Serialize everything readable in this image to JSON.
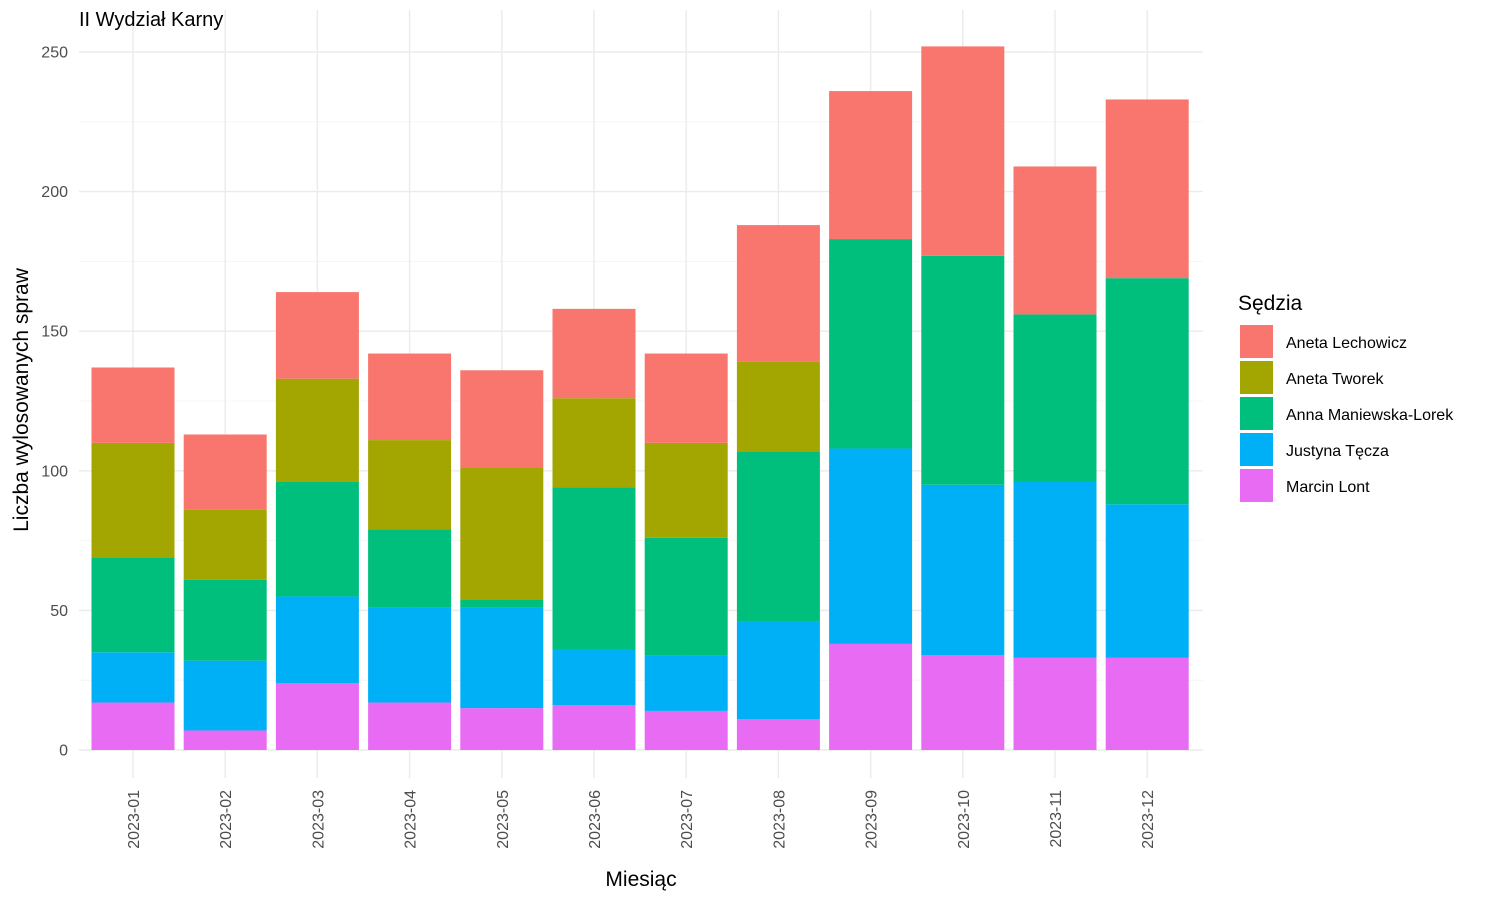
{
  "chart_data": {
    "type": "bar",
    "stacked": true,
    "title": "II Wydział Karny",
    "xlabel": "Miesiąc",
    "ylabel": "Liczba wylosowanych spraw",
    "ylim": [
      0,
      252
    ],
    "yticks": [
      0,
      50,
      100,
      150,
      200,
      250
    ],
    "grid": true,
    "legend_title": "Sędzia",
    "legend_position": "right",
    "categories": [
      "2023-01",
      "2023-02",
      "2023-03",
      "2023-04",
      "2023-05",
      "2023-06",
      "2023-07",
      "2023-08",
      "2023-09",
      "2023-10",
      "2023-11",
      "2023-12"
    ],
    "series": [
      {
        "name": "Aneta Lechowicz",
        "color": "#F8766D",
        "values": [
          27,
          27,
          31,
          31,
          35,
          32,
          32,
          49,
          53,
          75,
          53,
          64
        ]
      },
      {
        "name": "Aneta Tworek",
        "color": "#A3A500",
        "values": [
          41,
          25,
          37,
          32,
          47,
          32,
          34,
          32,
          0,
          0,
          0,
          0
        ]
      },
      {
        "name": "Anna Maniewska-Lorek",
        "color": "#00BF7D",
        "values": [
          34,
          29,
          41,
          28,
          3,
          58,
          42,
          61,
          75,
          82,
          60,
          81
        ]
      },
      {
        "name": "Justyna Tęcza",
        "color": "#00B0F6",
        "values": [
          18,
          25,
          31,
          34,
          36,
          20,
          20,
          35,
          70,
          61,
          63,
          55
        ]
      },
      {
        "name": "Marcin Lont",
        "color": "#E76BF3",
        "values": [
          17,
          7,
          24,
          17,
          15,
          16,
          14,
          11,
          38,
          34,
          33,
          33
        ]
      }
    ]
  }
}
